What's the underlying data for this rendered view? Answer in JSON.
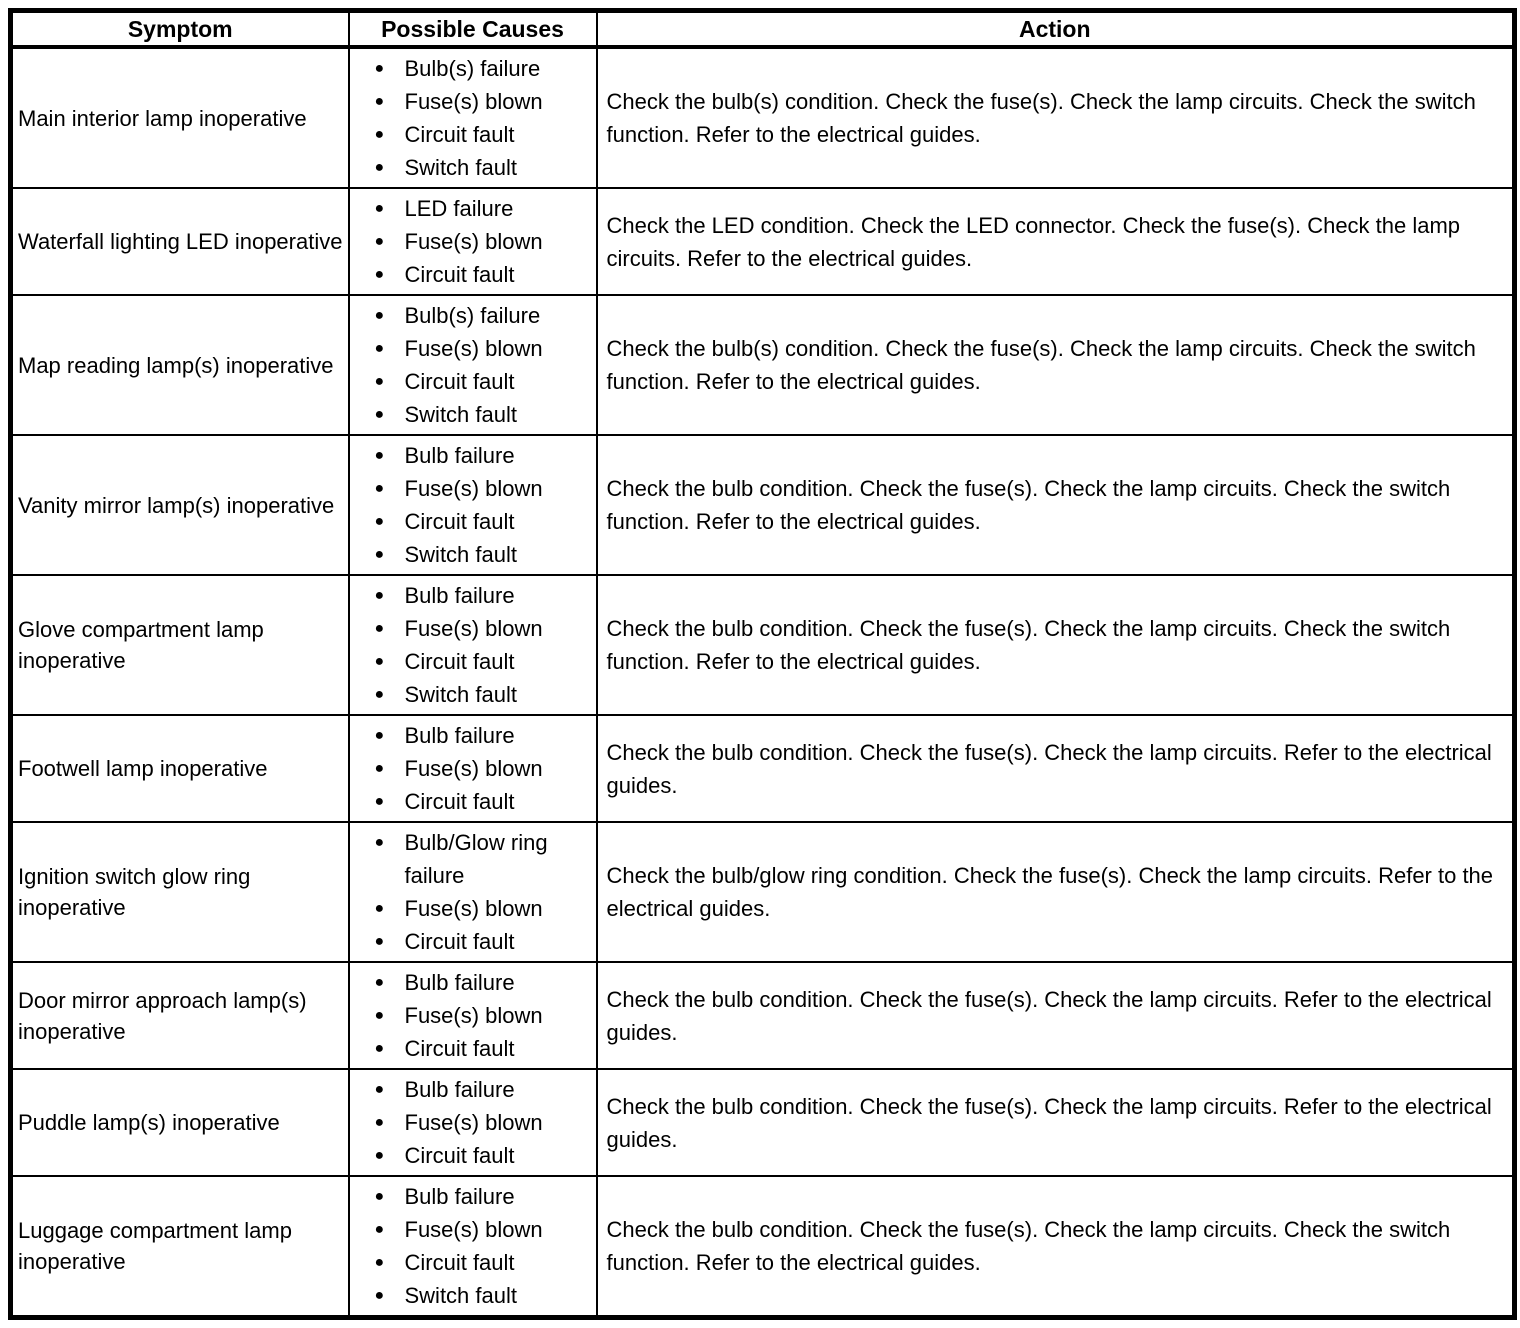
{
  "colors": {
    "border": "#000000",
    "text": "#000000",
    "background": "#ffffff"
  },
  "icons": {
    "bullet": "●"
  },
  "table": {
    "columns": [
      "Symptom",
      "Possible Causes",
      "Action"
    ],
    "rows": [
      {
        "symptom": "Main interior lamp inoperative",
        "causes": [
          "Bulb(s) failure",
          "Fuse(s) blown",
          "Circuit fault",
          "Switch fault"
        ],
        "action": "Check the bulb(s) condition. Check the fuse(s). Check the lamp circuits. Check the switch function. Refer to the electrical guides."
      },
      {
        "symptom": "Waterfall lighting LED inoperative",
        "causes": [
          "LED failure",
          "Fuse(s) blown",
          "Circuit fault"
        ],
        "action": "Check the LED condition. Check the LED connector. Check the fuse(s). Check the lamp circuits. Refer to the electrical guides."
      },
      {
        "symptom": "Map reading lamp(s) inoperative",
        "causes": [
          "Bulb(s) failure",
          "Fuse(s) blown",
          "Circuit fault",
          "Switch fault"
        ],
        "action": "Check the bulb(s) condition. Check the fuse(s). Check the lamp circuits. Check the switch function. Refer to the electrical guides."
      },
      {
        "symptom": "Vanity mirror lamp(s) inoperative",
        "causes": [
          "Bulb failure",
          "Fuse(s) blown",
          "Circuit fault",
          "Switch fault"
        ],
        "action": "Check the bulb condition. Check the fuse(s). Check the lamp circuits. Check the switch function. Refer to the electrical guides."
      },
      {
        "symptom": "Glove compartment lamp inoperative",
        "causes": [
          "Bulb failure",
          "Fuse(s) blown",
          "Circuit fault",
          "Switch fault"
        ],
        "action": "Check the bulb condition. Check the fuse(s). Check the lamp circuits. Check the switch function. Refer to the electrical guides."
      },
      {
        "symptom": "Footwell lamp inoperative",
        "causes": [
          "Bulb failure",
          "Fuse(s) blown",
          "Circuit fault"
        ],
        "action": "Check the bulb condition. Check the fuse(s). Check the lamp circuits. Refer to the electrical guides."
      },
      {
        "symptom": "Ignition switch glow ring inoperative",
        "causes": [
          "Bulb/Glow ring failure",
          "Fuse(s) blown",
          "Circuit fault"
        ],
        "action": "Check the bulb/glow ring condition. Check the fuse(s). Check the lamp circuits. Refer to the electrical guides."
      },
      {
        "symptom": "Door mirror approach lamp(s) inoperative",
        "causes": [
          "Bulb failure",
          "Fuse(s) blown",
          "Circuit fault"
        ],
        "action": "Check the bulb condition. Check the fuse(s). Check the lamp circuits. Refer to the electrical guides."
      },
      {
        "symptom": "Puddle lamp(s) inoperative",
        "causes": [
          "Bulb failure",
          "Fuse(s) blown",
          "Circuit fault"
        ],
        "action": "Check the bulb condition. Check the fuse(s). Check the lamp circuits. Refer to the electrical guides."
      },
      {
        "symptom": "Luggage compartment lamp inoperative",
        "causes": [
          "Bulb failure",
          "Fuse(s) blown",
          "Circuit fault",
          "Switch fault"
        ],
        "action": "Check the bulb condition. Check the fuse(s). Check the lamp circuits. Check the switch function. Refer to the electrical guides."
      }
    ]
  }
}
